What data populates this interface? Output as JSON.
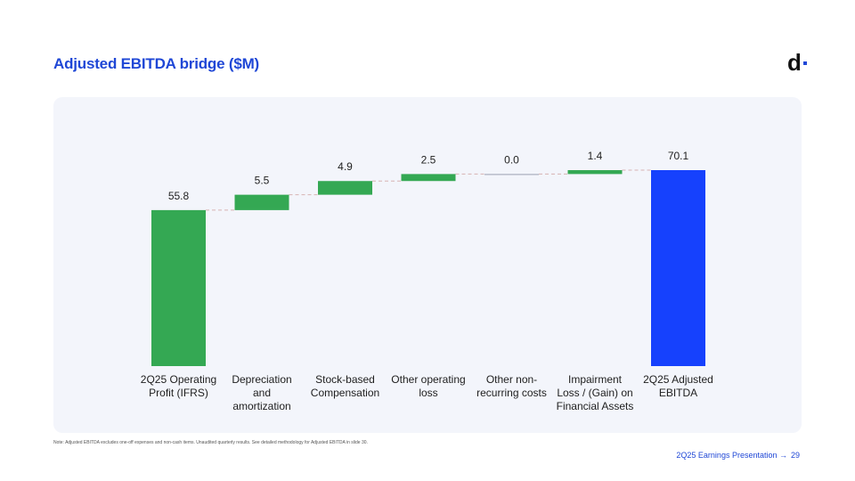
{
  "slide": {
    "title": "Adjusted EBITDA bridge ($M)",
    "logo_text": "d",
    "note": "Note: Adjusted EBITDA excludes one-off expenses and non-cash items. Unaudited quarterly results. See detailed methodology for Adjusted EBITDA in slide 30.",
    "footer_label": "2Q25 Earnings Presentation →",
    "page_number": "29"
  },
  "colors": {
    "brand_blue": "#1f47d6",
    "increase_green": "#34a853",
    "total_blue": "#1641fd",
    "zero_gray": "#9aa0b0",
    "connector": "#d7b3b3"
  },
  "chart_data": {
    "type": "waterfall",
    "title": "Adjusted EBITDA bridge ($M)",
    "ylim": [
      0,
      70.1
    ],
    "steps": [
      {
        "category": "2Q25 Operating Profit (IFRS)",
        "label_lines": [
          "2Q25 Operating",
          "Profit (IFRS)"
        ],
        "value": 55.8,
        "label": "55.8",
        "kind": "total"
      },
      {
        "category": "Depreciation and amortization",
        "label_lines": [
          "Depreciation",
          "and",
          "amortization"
        ],
        "value": 5.5,
        "label": "5.5",
        "kind": "increase"
      },
      {
        "category": "Stock-based Compensation",
        "label_lines": [
          "Stock-based",
          "Compensation"
        ],
        "value": 4.9,
        "label": "4.9",
        "kind": "increase"
      },
      {
        "category": "Other operating loss",
        "label_lines": [
          "Other operating",
          "loss"
        ],
        "value": 2.5,
        "label": "2.5",
        "kind": "increase"
      },
      {
        "category": "Other non-recurring costs",
        "label_lines": [
          "Other non-",
          "recurring costs"
        ],
        "value": 0.0,
        "label": "0.0",
        "kind": "increase"
      },
      {
        "category": "Impairment Loss / (Gain) on Financial Assets",
        "label_lines": [
          "Impairment",
          "Loss / (Gain) on",
          "Financial Assets"
        ],
        "value": 1.4,
        "label": "1.4",
        "kind": "increase"
      },
      {
        "category": "2Q25 Adjusted EBITDA",
        "label_lines": [
          "2Q25 Adjusted",
          "EBITDA"
        ],
        "value": 70.1,
        "label": "70.1",
        "kind": "final"
      }
    ]
  }
}
